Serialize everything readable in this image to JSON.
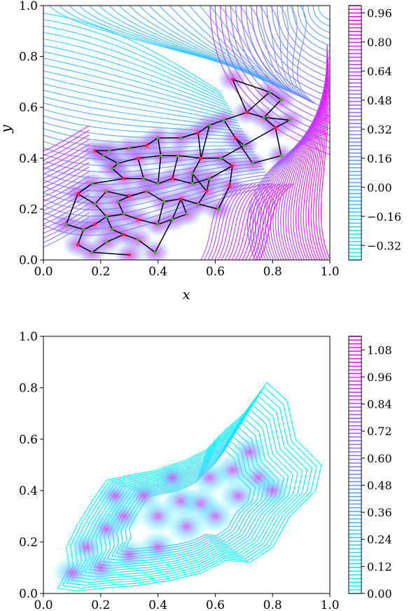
{
  "chart_data": [
    {
      "type": "contour",
      "title": "",
      "xlabel": "x",
      "ylabel": "y",
      "xlim": [
        0.0,
        1.0
      ],
      "ylim": [
        0.0,
        1.0
      ],
      "x_ticks": [
        "0.0",
        "0.2",
        "0.4",
        "0.6",
        "0.8",
        "1.0"
      ],
      "y_ticks": [
        "0.0",
        "0.2",
        "0.4",
        "0.6",
        "0.8",
        "1.0"
      ],
      "colorbar": {
        "ticks": [
          "0.96",
          "0.80",
          "0.64",
          "0.48",
          "0.32",
          "0.16",
          "0.00",
          "−0.16",
          "−0.32"
        ],
        "range": [
          -0.4,
          1.0
        ],
        "colormap": [
          "#00ffff",
          "#ff00ff"
        ]
      },
      "overlay": "graph",
      "nodes": [
        [
          0.66,
          0.71
        ],
        [
          0.79,
          0.66
        ],
        [
          0.83,
          0.63
        ],
        [
          0.71,
          0.58
        ],
        [
          0.77,
          0.56
        ],
        [
          0.86,
          0.55
        ],
        [
          0.81,
          0.52
        ],
        [
          0.83,
          0.41
        ],
        [
          0.73,
          0.38
        ],
        [
          0.67,
          0.48
        ],
        [
          0.63,
          0.55
        ],
        [
          0.58,
          0.53
        ],
        [
          0.54,
          0.5
        ],
        [
          0.48,
          0.48
        ],
        [
          0.4,
          0.48
        ],
        [
          0.36,
          0.45
        ],
        [
          0.3,
          0.44
        ],
        [
          0.23,
          0.43
        ],
        [
          0.18,
          0.43
        ],
        [
          0.21,
          0.41
        ],
        [
          0.26,
          0.38
        ],
        [
          0.33,
          0.4
        ],
        [
          0.41,
          0.41
        ],
        [
          0.47,
          0.41
        ],
        [
          0.55,
          0.4
        ],
        [
          0.62,
          0.4
        ],
        [
          0.7,
          0.45
        ],
        [
          0.66,
          0.37
        ],
        [
          0.58,
          0.32
        ],
        [
          0.52,
          0.3
        ],
        [
          0.45,
          0.32
        ],
        [
          0.4,
          0.3
        ],
        [
          0.35,
          0.32
        ],
        [
          0.28,
          0.32
        ],
        [
          0.24,
          0.36
        ],
        [
          0.17,
          0.3
        ],
        [
          0.12,
          0.26
        ],
        [
          0.18,
          0.22
        ],
        [
          0.22,
          0.27
        ],
        [
          0.3,
          0.25
        ],
        [
          0.36,
          0.27
        ],
        [
          0.42,
          0.23
        ],
        [
          0.48,
          0.24
        ],
        [
          0.54,
          0.22
        ],
        [
          0.61,
          0.2
        ],
        [
          0.65,
          0.29
        ],
        [
          0.45,
          0.16
        ],
        [
          0.4,
          0.14
        ],
        [
          0.33,
          0.16
        ],
        [
          0.28,
          0.18
        ],
        [
          0.22,
          0.17
        ],
        [
          0.18,
          0.14
        ],
        [
          0.14,
          0.12
        ],
        [
          0.08,
          0.14
        ],
        [
          0.12,
          0.06
        ],
        [
          0.17,
          0.03
        ],
        [
          0.22,
          0.07
        ],
        [
          0.28,
          0.1
        ],
        [
          0.33,
          0.08
        ],
        [
          0.39,
          0.03
        ],
        [
          0.3,
          0.02
        ],
        [
          0.24,
          0.12
        ],
        [
          0.52,
          0.34
        ],
        [
          0.57,
          0.27
        ],
        [
          0.5,
          0.18
        ],
        [
          0.26,
          0.23
        ]
      ],
      "edges": [
        [
          0,
          1
        ],
        [
          1,
          2
        ],
        [
          0,
          3
        ],
        [
          3,
          4
        ],
        [
          2,
          4
        ],
        [
          4,
          5
        ],
        [
          5,
          6
        ],
        [
          6,
          7
        ],
        [
          7,
          8
        ],
        [
          8,
          9
        ],
        [
          9,
          10
        ],
        [
          10,
          11
        ],
        [
          11,
          12
        ],
        [
          12,
          13
        ],
        [
          13,
          14
        ],
        [
          14,
          15
        ],
        [
          15,
          16
        ],
        [
          16,
          17
        ],
        [
          17,
          18
        ],
        [
          18,
          19
        ],
        [
          19,
          20
        ],
        [
          20,
          21
        ],
        [
          21,
          22
        ],
        [
          22,
          23
        ],
        [
          23,
          24
        ],
        [
          24,
          25
        ],
        [
          25,
          26
        ],
        [
          26,
          9
        ],
        [
          25,
          27
        ],
        [
          27,
          28
        ],
        [
          28,
          29
        ],
        [
          29,
          30
        ],
        [
          30,
          31
        ],
        [
          31,
          32
        ],
        [
          32,
          33
        ],
        [
          33,
          34
        ],
        [
          34,
          20
        ],
        [
          33,
          35
        ],
        [
          35,
          36
        ],
        [
          36,
          37
        ],
        [
          37,
          38
        ],
        [
          38,
          39
        ],
        [
          39,
          40
        ],
        [
          40,
          41
        ],
        [
          41,
          42
        ],
        [
          42,
          43
        ],
        [
          43,
          44
        ],
        [
          44,
          45
        ],
        [
          45,
          27
        ],
        [
          42,
          46
        ],
        [
          46,
          47
        ],
        [
          47,
          48
        ],
        [
          48,
          49
        ],
        [
          49,
          50
        ],
        [
          50,
          51
        ],
        [
          51,
          52
        ],
        [
          52,
          53
        ],
        [
          52,
          54
        ],
        [
          54,
          55
        ],
        [
          55,
          56
        ],
        [
          56,
          57
        ],
        [
          57,
          58
        ],
        [
          58,
          59
        ],
        [
          59,
          46
        ],
        [
          55,
          60
        ],
        [
          57,
          61
        ],
        [
          61,
          50
        ],
        [
          29,
          62
        ],
        [
          62,
          24
        ],
        [
          28,
          63
        ],
        [
          63,
          43
        ],
        [
          64,
          46
        ],
        [
          64,
          42
        ],
        [
          39,
          65
        ],
        [
          65,
          49
        ],
        [
          21,
          32
        ],
        [
          22,
          31
        ],
        [
          23,
          30
        ],
        [
          12,
          24
        ],
        [
          3,
          10
        ],
        [
          14,
          22
        ],
        [
          37,
          50
        ],
        [
          36,
          53
        ],
        [
          41,
          47
        ],
        [
          62,
          63
        ],
        [
          11,
          24
        ],
        [
          1,
          3
        ],
        [
          4,
          6
        ],
        [
          26,
          6
        ]
      ]
    },
    {
      "type": "contour",
      "title": "",
      "xlabel": "",
      "ylabel": "",
      "xlim": [
        0.0,
        1.0
      ],
      "ylim": [
        0.0,
        1.0
      ],
      "x_ticks": [
        "0.0",
        "0.2",
        "0.4",
        "0.6",
        "0.8",
        "1.0"
      ],
      "y_ticks": [
        "0.0",
        "0.2",
        "0.4",
        "0.6",
        "0.8",
        "1.0"
      ],
      "colorbar": {
        "ticks": [
          "1.08",
          "0.96",
          "0.84",
          "0.72",
          "0.60",
          "0.48",
          "0.36",
          "0.24",
          "0.12",
          "0.00"
        ],
        "range": [
          0.0,
          1.14
        ],
        "colormap": [
          "#00ffff",
          "#ff00ff"
        ]
      }
    }
  ]
}
